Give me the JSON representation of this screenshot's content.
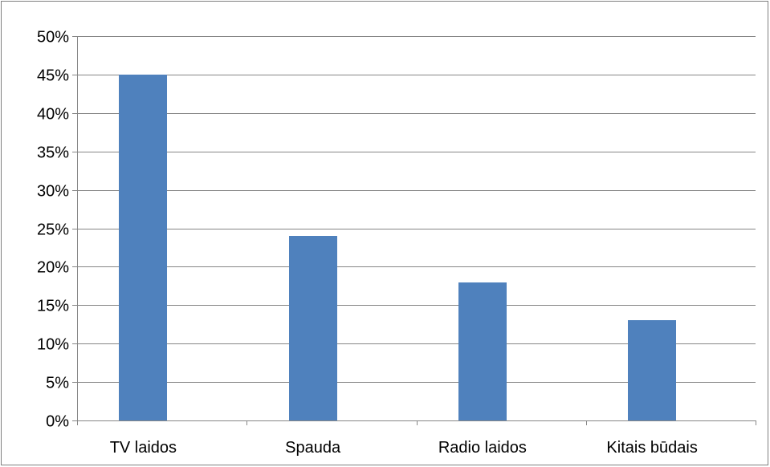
{
  "chart_data": {
    "type": "bar",
    "categories": [
      "TV laidos",
      "Spauda",
      "Radio laidos",
      "Kitais būdais"
    ],
    "values": [
      45,
      24,
      18,
      13
    ],
    "ylim": [
      0,
      50
    ],
    "yticks": [
      0,
      5,
      10,
      15,
      20,
      25,
      30,
      35,
      40,
      45,
      50
    ],
    "ytick_labels": [
      "0%",
      "5%",
      "10%",
      "15%",
      "20%",
      "25%",
      "30%",
      "35%",
      "40%",
      "45%",
      "50%"
    ],
    "grid": true,
    "legend": "none",
    "colors": {
      "bar": "#4f81bd",
      "gridline": "#868686",
      "axis": "#868686"
    }
  }
}
